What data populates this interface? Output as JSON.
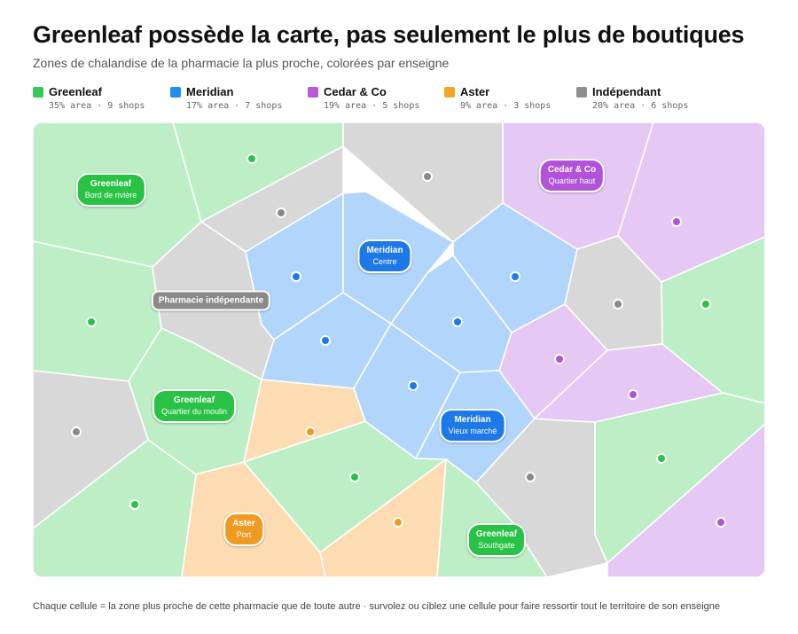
{
  "title": "Greenleaf possède la carte, pas seulement le plus de boutiques",
  "subtitle": "Zones de chalandise de la pharmacie la plus proche, colorées par enseigne",
  "colors": {
    "greenleaf": {
      "fill": "#bdeec6",
      "dot": "#28c244",
      "swatch": "#34c759"
    },
    "meridian": {
      "fill": "#b2d5fb",
      "dot": "#1d78e8",
      "swatch": "#1f8ef1"
    },
    "cedar": {
      "fill": "#e5c9f4",
      "dot": "#b053d9",
      "swatch": "#b45bdc"
    },
    "aster": {
      "fill": "#fddcb3",
      "dot": "#f19a22",
      "swatch": "#f5a623"
    },
    "independant": {
      "fill": "#d8d8d8",
      "dot": "#8a8a8a",
      "swatch": "#8e8e8e"
    }
  },
  "legend": [
    {
      "key": "greenleaf",
      "name": "Greenleaf",
      "stats": "35% area · 9 shops"
    },
    {
      "key": "meridian",
      "name": "Meridian",
      "stats": "17% area · 7 shops"
    },
    {
      "key": "cedar",
      "name": "Cedar & Co",
      "stats": "19% area · 5 shops"
    },
    {
      "key": "aster",
      "name": "Aster",
      "stats": "9% area · 3 shops"
    },
    {
      "key": "independant",
      "name": "Indépendant",
      "stats": "20% area · 6 shops"
    }
  ],
  "labels": [
    {
      "key": "greenleaf",
      "l1": "Greenleaf",
      "l2": "Bord de rivière"
    },
    {
      "key": "cedar",
      "l1": "Cedar & Co",
      "l2": "Quartier haut"
    },
    {
      "key": "meridian",
      "l1": "Meridian",
      "l2": "Centre"
    },
    {
      "key": "independant",
      "l1": "Pharmacie indépendante",
      "l2": ""
    },
    {
      "key": "greenleaf",
      "l1": "Greenleaf",
      "l2": "Quartier du moulin"
    },
    {
      "key": "meridian",
      "l1": "Meridian",
      "l2": "Vieux marché"
    },
    {
      "key": "aster",
      "l1": "Aster",
      "l2": "Port"
    },
    {
      "key": "greenleaf",
      "l1": "Greenleaf",
      "l2": "Southgate"
    }
  ],
  "footnote": "Chaque cellule = la zone plus proche de cette pharmacie que de toute autre · survolez ou ciblez une cellule pour faire ressortir tout le territoire de son enseigne"
}
